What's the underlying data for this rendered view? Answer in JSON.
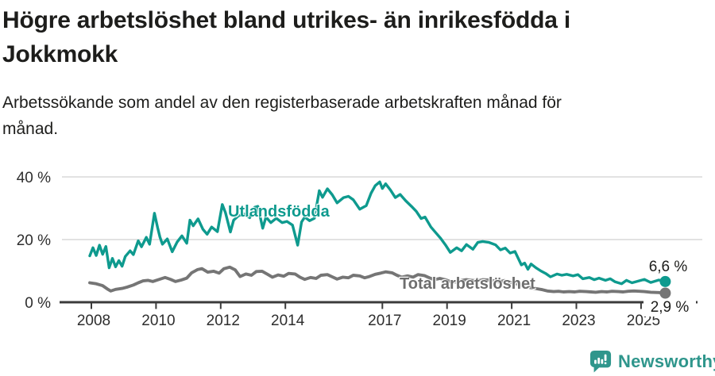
{
  "header": {
    "title": "Högre arbetslöshet bland utrikes- än inrikesfödda i Jokkmokk",
    "subtitle": "Arbetssökande som andel av den registerbaserade arbetskraften månad för månad."
  },
  "footer": {
    "brand": "Newsworthy",
    "brand_color": "#2f968c"
  },
  "colors": {
    "title_text": "#1d1d1b",
    "axis_line": "#3b3b3b",
    "gridline": "#d9d9d9",
    "tick_label": "#2e2e2e"
  },
  "chart_data": {
    "type": "line",
    "unit": "%",
    "grid": "horizontal-only",
    "legend_position": "inline-on-lines",
    "x_axis": {
      "ticks": [
        2008,
        2010,
        2012,
        2014,
        2017,
        2019,
        2021,
        2023,
        2025
      ],
      "tick_labels": [
        "2008",
        "2010",
        "2012",
        "2014",
        "2017",
        "2019",
        "2021",
        "2023",
        "2025"
      ],
      "range": [
        2007.0,
        2026.8
      ]
    },
    "y_axis": {
      "ticks": [
        0,
        20,
        40
      ],
      "tick_labels": [
        "0 %",
        "20 %",
        "40 %"
      ],
      "range": [
        0,
        42
      ]
    },
    "series": [
      {
        "id": "utlandsfodda",
        "name": "Utlandsfödda",
        "color": "#0e9a8e",
        "label_color": "#0e9a8e",
        "end_label": "6,6 %",
        "end_value": 6.6,
        "points": [
          [
            2007.95,
            14.8
          ],
          [
            2008.05,
            17.4
          ],
          [
            2008.15,
            14.9
          ],
          [
            2008.25,
            18.2
          ],
          [
            2008.35,
            15.3
          ],
          [
            2008.45,
            17.8
          ],
          [
            2008.55,
            11.0
          ],
          [
            2008.65,
            14.0
          ],
          [
            2008.75,
            11.3
          ],
          [
            2008.85,
            13.3
          ],
          [
            2008.95,
            11.5
          ],
          [
            2009.05,
            14.6
          ],
          [
            2009.2,
            16.4
          ],
          [
            2009.3,
            15.2
          ],
          [
            2009.45,
            19.6
          ],
          [
            2009.55,
            17.7
          ],
          [
            2009.7,
            20.7
          ],
          [
            2009.8,
            18.5
          ],
          [
            2009.95,
            28.4
          ],
          [
            2010.05,
            23.8
          ],
          [
            2010.12,
            20.8
          ],
          [
            2010.2,
            18.5
          ],
          [
            2010.35,
            20.2
          ],
          [
            2010.5,
            16.1
          ],
          [
            2010.65,
            19.2
          ],
          [
            2010.8,
            21.2
          ],
          [
            2010.95,
            18.8
          ],
          [
            2011.05,
            26.2
          ],
          [
            2011.15,
            24.4
          ],
          [
            2011.3,
            26.6
          ],
          [
            2011.45,
            23.3
          ],
          [
            2011.58,
            21.7
          ],
          [
            2011.72,
            24.0
          ],
          [
            2011.9,
            22.5
          ],
          [
            2012.05,
            31.2
          ],
          [
            2012.15,
            28.5
          ],
          [
            2012.3,
            22.4
          ],
          [
            2012.4,
            26.2
          ],
          [
            2012.55,
            27.6
          ],
          [
            2012.72,
            28.2
          ],
          [
            2012.9,
            27.0
          ],
          [
            2013.05,
            30.3
          ],
          [
            2013.15,
            30.6
          ],
          [
            2013.3,
            23.6
          ],
          [
            2013.4,
            27.2
          ],
          [
            2013.55,
            25.4
          ],
          [
            2013.72,
            26.8
          ],
          [
            2013.9,
            25.4
          ],
          [
            2014.05,
            25.8
          ],
          [
            2014.22,
            24.6
          ],
          [
            2014.38,
            18.2
          ],
          [
            2014.5,
            25.6
          ],
          [
            2014.6,
            27.2
          ],
          [
            2014.75,
            26.0
          ],
          [
            2014.9,
            26.8
          ],
          [
            2015.05,
            35.6
          ],
          [
            2015.15,
            33.5
          ],
          [
            2015.3,
            36.2
          ],
          [
            2015.45,
            34.3
          ],
          [
            2015.6,
            31.7
          ],
          [
            2015.8,
            33.4
          ],
          [
            2015.95,
            33.8
          ],
          [
            2016.1,
            32.7
          ],
          [
            2016.3,
            29.7
          ],
          [
            2016.5,
            30.8
          ],
          [
            2016.65,
            34.8
          ],
          [
            2016.78,
            37.2
          ],
          [
            2016.92,
            38.4
          ],
          [
            2017.0,
            36.3
          ],
          [
            2017.1,
            37.8
          ],
          [
            2017.25,
            35.8
          ],
          [
            2017.4,
            33.4
          ],
          [
            2017.55,
            34.4
          ],
          [
            2017.72,
            32.4
          ],
          [
            2017.9,
            30.6
          ],
          [
            2018.05,
            29.0
          ],
          [
            2018.2,
            26.7
          ],
          [
            2018.32,
            27.2
          ],
          [
            2018.5,
            24.0
          ],
          [
            2018.65,
            22.2
          ],
          [
            2018.8,
            20.4
          ],
          [
            2018.95,
            18.3
          ],
          [
            2019.1,
            15.9
          ],
          [
            2019.3,
            17.4
          ],
          [
            2019.45,
            16.4
          ],
          [
            2019.6,
            18.4
          ],
          [
            2019.8,
            16.9
          ],
          [
            2019.95,
            19.1
          ],
          [
            2020.1,
            19.4
          ],
          [
            2020.3,
            19.1
          ],
          [
            2020.5,
            18.3
          ],
          [
            2020.65,
            16.7
          ],
          [
            2020.8,
            17.3
          ],
          [
            2020.95,
            15.7
          ],
          [
            2021.1,
            16.2
          ],
          [
            2021.3,
            11.9
          ],
          [
            2021.4,
            12.5
          ],
          [
            2021.5,
            10.5
          ],
          [
            2021.6,
            12.2
          ],
          [
            2021.75,
            11.0
          ],
          [
            2021.9,
            10.0
          ],
          [
            2022.05,
            9.2
          ],
          [
            2022.2,
            8.1
          ],
          [
            2022.4,
            9.0
          ],
          [
            2022.55,
            8.6
          ],
          [
            2022.7,
            8.9
          ],
          [
            2022.9,
            8.4
          ],
          [
            2023.05,
            8.8
          ],
          [
            2023.2,
            7.5
          ],
          [
            2023.4,
            7.9
          ],
          [
            2023.55,
            7.2
          ],
          [
            2023.7,
            7.7
          ],
          [
            2023.9,
            7.0
          ],
          [
            2024.05,
            7.5
          ],
          [
            2024.2,
            6.5
          ],
          [
            2024.4,
            5.9
          ],
          [
            2024.55,
            7.0
          ],
          [
            2024.72,
            6.2
          ],
          [
            2024.9,
            6.7
          ],
          [
            2025.1,
            7.3
          ],
          [
            2025.3,
            6.3
          ],
          [
            2025.55,
            7.1
          ],
          [
            2025.75,
            6.6
          ]
        ]
      },
      {
        "id": "total",
        "name": "Total arbetslöshet",
        "color": "#757575",
        "label_color": "#6e6e6e",
        "end_label": "2,9 %",
        "end_value": 2.9,
        "points": [
          [
            2007.95,
            6.2
          ],
          [
            2008.15,
            5.9
          ],
          [
            2008.35,
            5.3
          ],
          [
            2008.5,
            4.2
          ],
          [
            2008.6,
            3.6
          ],
          [
            2008.75,
            4.1
          ],
          [
            2008.95,
            4.4
          ],
          [
            2009.1,
            4.8
          ],
          [
            2009.3,
            5.5
          ],
          [
            2009.45,
            6.2
          ],
          [
            2009.6,
            6.8
          ],
          [
            2009.75,
            7.0
          ],
          [
            2009.9,
            6.6
          ],
          [
            2010.1,
            7.3
          ],
          [
            2010.28,
            7.9
          ],
          [
            2010.45,
            7.3
          ],
          [
            2010.6,
            6.6
          ],
          [
            2010.78,
            7.1
          ],
          [
            2010.95,
            7.7
          ],
          [
            2011.1,
            9.4
          ],
          [
            2011.28,
            10.4
          ],
          [
            2011.42,
            10.7
          ],
          [
            2011.6,
            9.6
          ],
          [
            2011.78,
            9.9
          ],
          [
            2011.95,
            9.3
          ],
          [
            2012.1,
            10.7
          ],
          [
            2012.28,
            11.2
          ],
          [
            2012.45,
            10.3
          ],
          [
            2012.6,
            8.2
          ],
          [
            2012.78,
            9.0
          ],
          [
            2012.95,
            8.6
          ],
          [
            2013.1,
            9.8
          ],
          [
            2013.28,
            9.9
          ],
          [
            2013.45,
            8.9
          ],
          [
            2013.6,
            8.0
          ],
          [
            2013.78,
            8.7
          ],
          [
            2013.95,
            8.3
          ],
          [
            2014.1,
            9.2
          ],
          [
            2014.3,
            9.0
          ],
          [
            2014.45,
            8.0
          ],
          [
            2014.6,
            7.3
          ],
          [
            2014.78,
            7.9
          ],
          [
            2014.95,
            7.6
          ],
          [
            2015.1,
            8.6
          ],
          [
            2015.3,
            8.8
          ],
          [
            2015.45,
            8.1
          ],
          [
            2015.6,
            7.4
          ],
          [
            2015.78,
            8.0
          ],
          [
            2015.95,
            7.8
          ],
          [
            2016.1,
            8.6
          ],
          [
            2016.3,
            8.4
          ],
          [
            2016.45,
            7.8
          ],
          [
            2016.6,
            8.2
          ],
          [
            2016.78,
            8.9
          ],
          [
            2016.95,
            9.3
          ],
          [
            2017.1,
            9.7
          ],
          [
            2017.3,
            9.4
          ],
          [
            2017.45,
            8.6
          ],
          [
            2017.6,
            8.0
          ],
          [
            2017.78,
            8.4
          ],
          [
            2017.95,
            8.0
          ],
          [
            2018.1,
            8.8
          ],
          [
            2018.3,
            8.5
          ],
          [
            2018.45,
            7.8
          ],
          [
            2018.6,
            7.2
          ],
          [
            2018.78,
            7.6
          ],
          [
            2018.95,
            7.2
          ],
          [
            2019.1,
            6.6
          ],
          [
            2019.3,
            6.4
          ],
          [
            2019.45,
            7.0
          ],
          [
            2019.6,
            7.2
          ],
          [
            2019.78,
            7.0
          ],
          [
            2019.95,
            6.8
          ],
          [
            2020.1,
            7.2
          ],
          [
            2020.3,
            7.1
          ],
          [
            2020.45,
            6.8
          ],
          [
            2020.6,
            6.5
          ],
          [
            2020.78,
            6.9
          ],
          [
            2020.95,
            6.4
          ],
          [
            2021.1,
            6.0
          ],
          [
            2021.3,
            5.5
          ],
          [
            2021.45,
            5.0
          ],
          [
            2021.6,
            4.6
          ],
          [
            2021.78,
            4.3
          ],
          [
            2021.95,
            4.0
          ],
          [
            2022.1,
            3.6
          ],
          [
            2022.3,
            3.4
          ],
          [
            2022.45,
            3.5
          ],
          [
            2022.6,
            3.3
          ],
          [
            2022.78,
            3.4
          ],
          [
            2022.95,
            3.3
          ],
          [
            2023.1,
            3.5
          ],
          [
            2023.3,
            3.4
          ],
          [
            2023.45,
            3.3
          ],
          [
            2023.6,
            3.2
          ],
          [
            2023.78,
            3.4
          ],
          [
            2023.95,
            3.3
          ],
          [
            2024.1,
            3.5
          ],
          [
            2024.3,
            3.4
          ],
          [
            2024.45,
            3.3
          ],
          [
            2024.6,
            3.5
          ],
          [
            2024.78,
            3.6
          ],
          [
            2024.95,
            3.5
          ],
          [
            2025.1,
            3.4
          ],
          [
            2025.3,
            3.2
          ],
          [
            2025.55,
            3.1
          ],
          [
            2025.75,
            2.9
          ]
        ]
      }
    ]
  }
}
